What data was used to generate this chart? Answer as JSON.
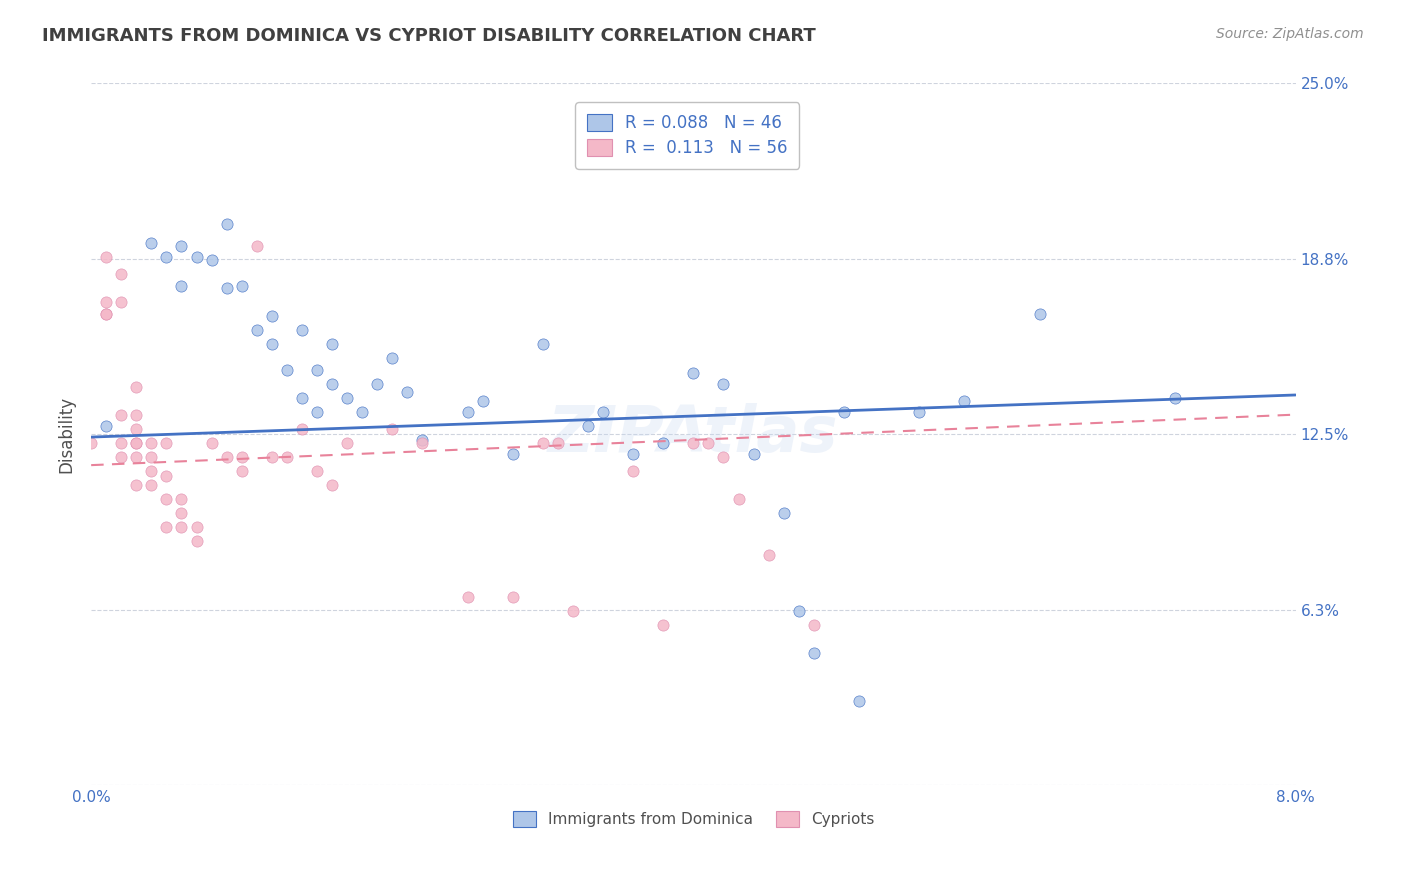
{
  "title": "IMMIGRANTS FROM DOMINICA VS CYPRIOT DISABILITY CORRELATION CHART",
  "source_text": "Source: ZipAtlas.com",
  "ylabel": "Disability",
  "xlim": [
    0.0,
    0.08
  ],
  "ylim": [
    0.0,
    0.25
  ],
  "ytick_positions": [
    0.0,
    0.0625,
    0.125,
    0.1875,
    0.25
  ],
  "ytick_labels": [
    "",
    "6.3%",
    "12.5%",
    "18.8%",
    "25.0%"
  ],
  "xtick_positions": [
    0.0,
    0.01,
    0.02,
    0.03,
    0.04,
    0.05,
    0.06,
    0.07,
    0.08
  ],
  "xtick_labels": [
    "0.0%",
    "",
    "",
    "",
    "",
    "",
    "",
    "",
    "8.0%"
  ],
  "legend_label_bottom": [
    "Immigrants from Dominica",
    "Cypriots"
  ],
  "legend_r_blue": "R = 0.088",
  "legend_n_blue": "N = 46",
  "legend_r_pink": "R =  0.113",
  "legend_n_pink": "N = 56",
  "watermark": "ZIPAtlas",
  "blue_color": "#aec6e8",
  "pink_color": "#f4b8c8",
  "blue_line_color": "#4472c4",
  "pink_line_color": "#e8829a",
  "text_color": "#4472c4",
  "title_color": "#404040",
  "grid_color": "#b0b8c8",
  "blue_scatter": [
    [
      0.001,
      0.128
    ],
    [
      0.004,
      0.193
    ],
    [
      0.005,
      0.188
    ],
    [
      0.006,
      0.192
    ],
    [
      0.006,
      0.178
    ],
    [
      0.007,
      0.188
    ],
    [
      0.008,
      0.187
    ],
    [
      0.009,
      0.177
    ],
    [
      0.009,
      0.2
    ],
    [
      0.01,
      0.178
    ],
    [
      0.011,
      0.162
    ],
    [
      0.012,
      0.167
    ],
    [
      0.012,
      0.157
    ],
    [
      0.013,
      0.148
    ],
    [
      0.014,
      0.138
    ],
    [
      0.014,
      0.162
    ],
    [
      0.015,
      0.148
    ],
    [
      0.015,
      0.133
    ],
    [
      0.016,
      0.157
    ],
    [
      0.016,
      0.143
    ],
    [
      0.017,
      0.138
    ],
    [
      0.018,
      0.133
    ],
    [
      0.019,
      0.143
    ],
    [
      0.02,
      0.152
    ],
    [
      0.021,
      0.14
    ],
    [
      0.022,
      0.123
    ],
    [
      0.025,
      0.133
    ],
    [
      0.026,
      0.137
    ],
    [
      0.028,
      0.118
    ],
    [
      0.03,
      0.157
    ],
    [
      0.033,
      0.128
    ],
    [
      0.034,
      0.133
    ],
    [
      0.036,
      0.118
    ],
    [
      0.038,
      0.122
    ],
    [
      0.04,
      0.147
    ],
    [
      0.042,
      0.143
    ],
    [
      0.044,
      0.118
    ],
    [
      0.046,
      0.097
    ],
    [
      0.047,
      0.062
    ],
    [
      0.05,
      0.133
    ],
    [
      0.055,
      0.133
    ],
    [
      0.058,
      0.137
    ],
    [
      0.063,
      0.168
    ],
    [
      0.072,
      0.138
    ],
    [
      0.048,
      0.047
    ],
    [
      0.051,
      0.03
    ]
  ],
  "pink_scatter": [
    [
      0.0,
      0.122
    ],
    [
      0.001,
      0.188
    ],
    [
      0.001,
      0.168
    ],
    [
      0.001,
      0.168
    ],
    [
      0.001,
      0.172
    ],
    [
      0.002,
      0.182
    ],
    [
      0.002,
      0.172
    ],
    [
      0.002,
      0.122
    ],
    [
      0.002,
      0.132
    ],
    [
      0.002,
      0.117
    ],
    [
      0.003,
      0.117
    ],
    [
      0.003,
      0.122
    ],
    [
      0.003,
      0.107
    ],
    [
      0.003,
      0.142
    ],
    [
      0.003,
      0.132
    ],
    [
      0.003,
      0.122
    ],
    [
      0.003,
      0.127
    ],
    [
      0.004,
      0.107
    ],
    [
      0.004,
      0.117
    ],
    [
      0.004,
      0.122
    ],
    [
      0.004,
      0.112
    ],
    [
      0.005,
      0.102
    ],
    [
      0.005,
      0.11
    ],
    [
      0.005,
      0.122
    ],
    [
      0.005,
      0.092
    ],
    [
      0.006,
      0.092
    ],
    [
      0.006,
      0.097
    ],
    [
      0.006,
      0.102
    ],
    [
      0.007,
      0.087
    ],
    [
      0.007,
      0.092
    ],
    [
      0.008,
      0.122
    ],
    [
      0.009,
      0.117
    ],
    [
      0.01,
      0.112
    ],
    [
      0.01,
      0.117
    ],
    [
      0.011,
      0.192
    ],
    [
      0.012,
      0.117
    ],
    [
      0.013,
      0.117
    ],
    [
      0.014,
      0.127
    ],
    [
      0.015,
      0.112
    ],
    [
      0.016,
      0.107
    ],
    [
      0.017,
      0.122
    ],
    [
      0.02,
      0.127
    ],
    [
      0.022,
      0.122
    ],
    [
      0.025,
      0.067
    ],
    [
      0.028,
      0.067
    ],
    [
      0.03,
      0.122
    ],
    [
      0.031,
      0.122
    ],
    [
      0.032,
      0.062
    ],
    [
      0.036,
      0.112
    ],
    [
      0.038,
      0.057
    ],
    [
      0.04,
      0.122
    ],
    [
      0.041,
      0.122
    ],
    [
      0.042,
      0.117
    ],
    [
      0.043,
      0.102
    ],
    [
      0.045,
      0.082
    ],
    [
      0.048,
      0.057
    ]
  ],
  "blue_line": [
    [
      0.0,
      0.124
    ],
    [
      0.08,
      0.139
    ]
  ],
  "pink_line": [
    [
      0.0,
      0.114
    ],
    [
      0.08,
      0.132
    ]
  ]
}
